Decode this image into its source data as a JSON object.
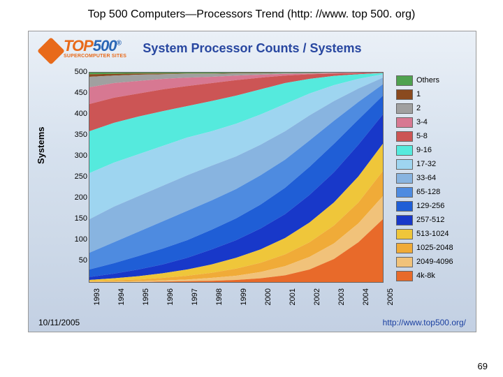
{
  "page_title": "Top 500 Computers—Processors Trend (http: //www. top 500. org)",
  "slide_number": "69",
  "logo": {
    "top": "TOP",
    "num": "500",
    "reg": "®",
    "sub": "SUPERCOMPUTER SITES"
  },
  "chart": {
    "type": "stacked-area",
    "title": "System Processor Counts / Systems",
    "y_label": "Systems",
    "y_ticks": [
      "50",
      "100",
      "150",
      "200",
      "250",
      "300",
      "350",
      "400",
      "450",
      "500"
    ],
    "ylim": [
      0,
      500
    ],
    "x_categories": [
      "1993",
      "1994",
      "1995",
      "1996",
      "1997",
      "1998",
      "1999",
      "2000",
      "2001",
      "2002",
      "2003",
      "2004",
      "2005"
    ],
    "legend": [
      {
        "label": "Others",
        "color": "#4fa24f"
      },
      {
        "label": "1",
        "color": "#8a4a1f"
      },
      {
        "label": "2",
        "color": "#a0a0a0"
      },
      {
        "label": "3-4",
        "color": "#d77892"
      },
      {
        "label": "5-8",
        "color": "#cc5555"
      },
      {
        "label": "9-16",
        "color": "#55eadd"
      },
      {
        "label": "17-32",
        "color": "#9ed5f0"
      },
      {
        "label": "33-64",
        "color": "#88b4e0"
      },
      {
        "label": "65-128",
        "color": "#4e8be0"
      },
      {
        "label": "129-256",
        "color": "#1f5ed6"
      },
      {
        "label": "257-512",
        "color": "#1838c9"
      },
      {
        "label": "513-1024",
        "color": "#efc63a"
      },
      {
        "label": "1025-2048",
        "color": "#f0ab38"
      },
      {
        "label": "2049-4096",
        "color": "#f1c27a"
      },
      {
        "label": "4k-8k",
        "color": "#e86a2a"
      }
    ],
    "series_cumulative_top": {
      "Others": [
        500,
        500,
        500,
        500,
        500,
        500,
        500,
        500,
        500,
        500,
        500,
        500,
        500
      ],
      "1": [
        496,
        497,
        498,
        498,
        498,
        498,
        499,
        499,
        499,
        499,
        500,
        500,
        500
      ],
      "2": [
        490,
        493,
        495,
        496,
        497,
        497,
        498,
        498,
        499,
        499,
        500,
        500,
        500
      ],
      "3-4": [
        465,
        475,
        480,
        485,
        488,
        490,
        493,
        495,
        497,
        498,
        499,
        500,
        500
      ],
      "5-8": [
        425,
        440,
        450,
        460,
        468,
        475,
        482,
        488,
        493,
        496,
        498,
        499,
        500
      ],
      "9-16": [
        360,
        380,
        395,
        408,
        420,
        432,
        445,
        460,
        475,
        485,
        492,
        496,
        499
      ],
      "17-32": [
        260,
        285,
        305,
        325,
        345,
        360,
        378,
        400,
        425,
        450,
        470,
        485,
        496
      ],
      "33-64": [
        150,
        180,
        205,
        230,
        255,
        278,
        300,
        328,
        360,
        398,
        432,
        462,
        488
      ],
      "65-128": [
        70,
        95,
        120,
        145,
        170,
        195,
        222,
        255,
        292,
        338,
        385,
        430,
        472
      ],
      "129-256": [
        30,
        45,
        62,
        80,
        100,
        125,
        152,
        185,
        225,
        275,
        330,
        388,
        445
      ],
      "257-512": [
        12,
        20,
        30,
        42,
        58,
        78,
        100,
        128,
        162,
        208,
        262,
        328,
        400
      ],
      "513-1024": [
        5,
        9,
        14,
        21,
        30,
        42,
        58,
        78,
        105,
        142,
        190,
        252,
        330
      ],
      "1025-2048": [
        2,
        4,
        6,
        10,
        15,
        22,
        32,
        46,
        66,
        95,
        135,
        190,
        265
      ],
      "2049-4096": [
        1,
        1,
        2,
        4,
        6,
        10,
        15,
        24,
        38,
        60,
        92,
        140,
        205
      ],
      "4k-8k": [
        0,
        0,
        0,
        1,
        2,
        3,
        5,
        9,
        16,
        30,
        55,
        95,
        150
      ]
    },
    "footer_date": "10/11/2005",
    "footer_url": "http://www.top500.org/",
    "grid_color": "#e0e0e0",
    "background_color": "#ffffff",
    "axis_color": "#666666",
    "label_fontsize": 11,
    "title_fontsize": 18
  }
}
